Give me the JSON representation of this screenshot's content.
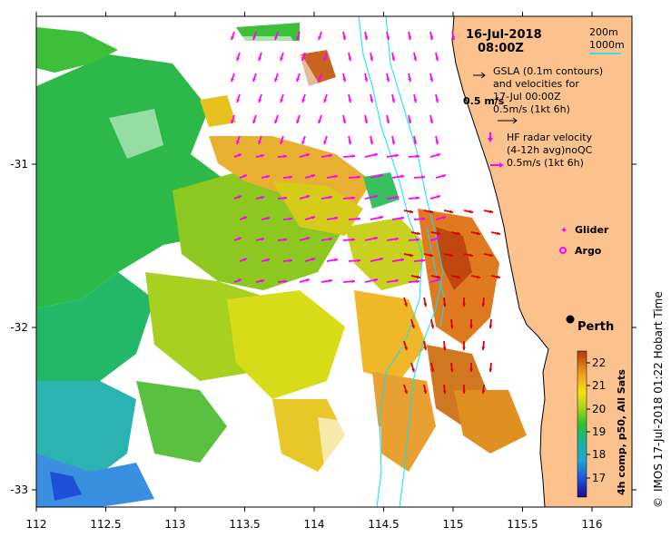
{
  "map": {
    "date": "16-Jul-2018",
    "time": "08:00Z",
    "scale": {
      "line1": "200m",
      "line2": "1000m"
    },
    "gsla_legend": [
      "GSLA (0.1m contours)",
      "and velocities for",
      "17-Jul 00:00Z",
      "0.5m/s (1kt 6h)"
    ],
    "velocity_label": "0.5 m/s",
    "hf_legend": [
      "HF radar velocity",
      "(4-12h avg)noQC",
      "0.5m/s (1kt 6h)"
    ],
    "glider_label": "Glider",
    "argo_label": "Argo",
    "city_label": "Perth",
    "credit": "IMOS 17-Jul-2018 01:22 Hobart Time",
    "copyright_symbol": "©",
    "colorbar_title": "4h comp, p50, All Sats",
    "colorbar_ticks": [
      "17",
      "18",
      "19",
      "20",
      "21",
      "22"
    ],
    "x_ticks": [
      "112",
      "112.5",
      "113",
      "113.5",
      "114",
      "114.5",
      "115",
      "115.5",
      "116"
    ],
    "y_ticks": [
      "-31",
      "-32",
      "-33"
    ],
    "colors": {
      "land": "#fcc28e",
      "arrows_hf": "#ff00ff",
      "arrows_gsla": "#e00000",
      "contour": "#00e5ff",
      "scale_cyan": "#00e5ff"
    }
  }
}
